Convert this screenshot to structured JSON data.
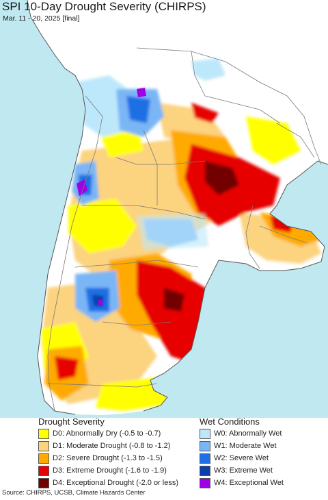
{
  "header": {
    "title": "SPI 10-Day Drought Severity (CHIRPS)",
    "subtitle": "Mar. 11 - 20, 2025 [final]"
  },
  "colors": {
    "ocean": "#bfe8f1",
    "land_neutral": "#ffffff",
    "boundary": "#7a7a7a"
  },
  "legend": {
    "drought_title": "Drought Severity",
    "wet_title": "Wet Conditions",
    "drought": [
      {
        "label": "D0: Abnormally Dry (-0.5 to -0.7)",
        "color": "#ffff00"
      },
      {
        "label": "D1: Moderate Drought (-0.8 to -1.2)",
        "color": "#fcd37f"
      },
      {
        "label": "D2: Severe Drought (-1.3 to -1.5)",
        "color": "#ffaa00"
      },
      {
        "label": "D3: Extreme Drought (-1.6 to -1.9)",
        "color": "#e60000"
      },
      {
        "label": "D4: Exceptional Drought (-2.0 or less)",
        "color": "#730000"
      }
    ],
    "wet": [
      {
        "label": "W0: Abnormally Wet",
        "color": "#bde8fb"
      },
      {
        "label": "W1: Moderate Wet",
        "color": "#7ab6f5"
      },
      {
        "label": "W2: Severe Wet",
        "color": "#1d6fe3"
      },
      {
        "label": "W3: Extreme Wet",
        "color": "#0a3fa8"
      },
      {
        "label": "W4: Exceptional Wet",
        "color": "#a000e6"
      }
    ]
  },
  "footer": {
    "source": "Source: CHIRPS, UCSB, Climate Hazards Center"
  }
}
